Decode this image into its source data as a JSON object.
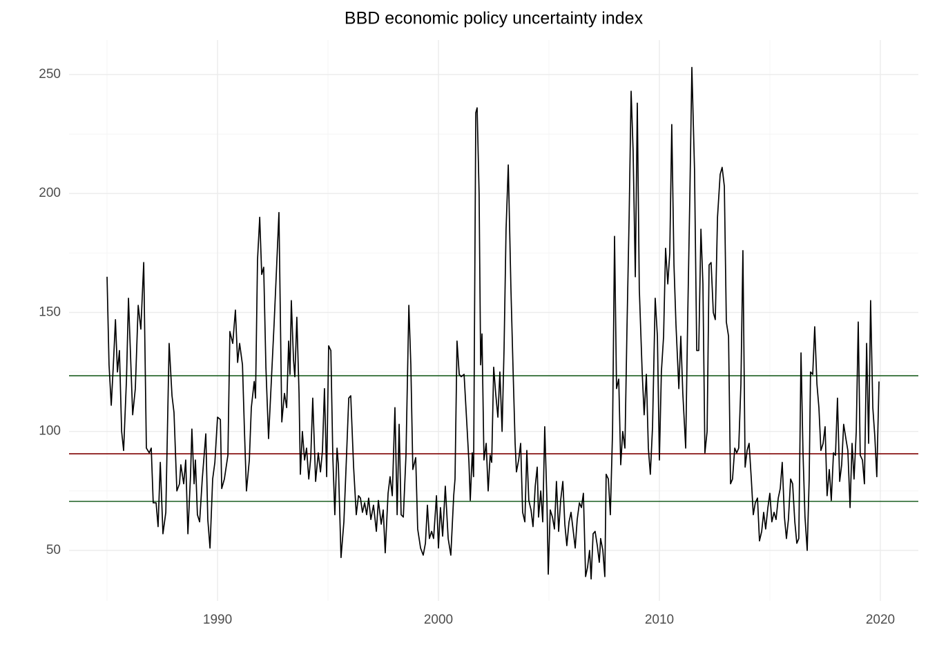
{
  "chart_data": {
    "type": "line",
    "title": "BBD economic policy uncertainty index",
    "x": [
      1985.0,
      1985.09,
      1985.19,
      1985.28,
      1985.38,
      1985.47,
      1985.56,
      1985.66,
      1985.75,
      1985.88,
      1985.97,
      1986.16,
      1986.28,
      1986.41,
      1986.53,
      1986.66,
      1986.78,
      1986.91,
      1987.0,
      1987.09,
      1987.22,
      1987.31,
      1987.41,
      1987.53,
      1987.66,
      1987.81,
      1987.94,
      1988.03,
      1988.16,
      1988.28,
      1988.34,
      1988.47,
      1988.56,
      1988.66,
      1988.78,
      1988.84,
      1988.94,
      1989.0,
      1989.09,
      1989.19,
      1989.31,
      1989.47,
      1989.56,
      1989.66,
      1989.78,
      1989.88,
      1990.0,
      1990.13,
      1990.19,
      1990.31,
      1990.47,
      1990.56,
      1990.69,
      1990.81,
      1990.91,
      1991.0,
      1991.13,
      1991.22,
      1991.31,
      1991.44,
      1991.53,
      1991.66,
      1991.72,
      1991.81,
      1991.91,
      1992.0,
      1992.09,
      1992.19,
      1992.31,
      1992.44,
      1992.56,
      1992.66,
      1992.78,
      1992.91,
      1993.03,
      1993.13,
      1993.22,
      1993.28,
      1993.34,
      1993.44,
      1993.5,
      1993.59,
      1993.69,
      1993.75,
      1993.84,
      1993.94,
      1994.03,
      1994.13,
      1994.22,
      1994.31,
      1994.44,
      1994.56,
      1994.66,
      1994.75,
      1994.84,
      1994.94,
      1995.03,
      1995.13,
      1995.22,
      1995.31,
      1995.41,
      1995.47,
      1995.59,
      1995.72,
      1995.84,
      1995.94,
      1996.03,
      1996.16,
      1996.28,
      1996.38,
      1996.47,
      1996.56,
      1996.66,
      1996.75,
      1996.84,
      1996.94,
      1997.06,
      1997.19,
      1997.28,
      1997.41,
      1997.5,
      1997.59,
      1997.72,
      1997.81,
      1997.91,
      1998.03,
      1998.13,
      1998.22,
      1998.31,
      1998.41,
      1998.53,
      1998.66,
      1998.75,
      1998.84,
      1998.97,
      1999.06,
      1999.19,
      1999.31,
      1999.41,
      1999.5,
      1999.59,
      1999.69,
      1999.78,
      1999.91,
      2000.0,
      2000.09,
      2000.19,
      2000.31,
      2000.44,
      2000.56,
      2000.69,
      2000.75,
      2000.84,
      2000.94,
      2001.03,
      2001.16,
      2001.28,
      2001.38,
      2001.44,
      2001.53,
      2001.59,
      2001.69,
      2001.75,
      2001.84,
      2001.91,
      2001.97,
      2002.06,
      2002.16,
      2002.25,
      2002.34,
      2002.41,
      2002.5,
      2002.59,
      2002.69,
      2002.78,
      2002.88,
      2002.97,
      2003.06,
      2003.16,
      2003.28,
      2003.38,
      2003.47,
      2003.53,
      2003.63,
      2003.72,
      2003.81,
      2003.91,
      2004.0,
      2004.09,
      2004.19,
      2004.28,
      2004.38,
      2004.47,
      2004.53,
      2004.63,
      2004.72,
      2004.81,
      2004.91,
      2004.97,
      2005.06,
      2005.16,
      2005.25,
      2005.34,
      2005.44,
      2005.53,
      2005.63,
      2005.72,
      2005.81,
      2005.91,
      2006.0,
      2006.09,
      2006.19,
      2006.28,
      2006.38,
      2006.47,
      2006.56,
      2006.66,
      2006.75,
      2006.84,
      2006.91,
      2007.0,
      2007.09,
      2007.19,
      2007.28,
      2007.34,
      2007.44,
      2007.53,
      2007.59,
      2007.69,
      2007.78,
      2007.88,
      2007.97,
      2008.06,
      2008.16,
      2008.25,
      2008.34,
      2008.44,
      2008.53,
      2008.63,
      2008.72,
      2008.81,
      2008.91,
      2009.0,
      2009.09,
      2009.22,
      2009.31,
      2009.41,
      2009.5,
      2009.59,
      2009.69,
      2009.81,
      2009.91,
      2010.0,
      2010.09,
      2010.19,
      2010.28,
      2010.38,
      2010.47,
      2010.56,
      2010.66,
      2010.75,
      2010.88,
      2010.97,
      2011.06,
      2011.19,
      2011.28,
      2011.38,
      2011.47,
      2011.59,
      2011.69,
      2011.78,
      2011.88,
      2011.97,
      2012.06,
      2012.16,
      2012.25,
      2012.34,
      2012.44,
      2012.53,
      2012.63,
      2012.75,
      2012.84,
      2012.94,
      2013.03,
      2013.13,
      2013.22,
      2013.31,
      2013.41,
      2013.5,
      2013.59,
      2013.69,
      2013.78,
      2013.88,
      2013.97,
      2014.06,
      2014.16,
      2014.25,
      2014.34,
      2014.44,
      2014.53,
      2014.63,
      2014.72,
      2014.81,
      2014.91,
      2015.0,
      2015.09,
      2015.19,
      2015.28,
      2015.38,
      2015.47,
      2015.56,
      2015.66,
      2015.75,
      2015.84,
      2015.94,
      2016.03,
      2016.13,
      2016.22,
      2016.31,
      2016.41,
      2016.5,
      2016.59,
      2016.69,
      2016.78,
      2016.84,
      2016.94,
      2017.03,
      2017.13,
      2017.22,
      2017.31,
      2017.41,
      2017.5,
      2017.59,
      2017.69,
      2017.78,
      2017.88,
      2017.97,
      2018.06,
      2018.16,
      2018.25,
      2018.34,
      2018.44,
      2018.53,
      2018.63,
      2018.72,
      2018.81,
      2018.91,
      2019.0,
      2019.09,
      2019.19,
      2019.28,
      2019.38,
      2019.47,
      2019.56,
      2019.66,
      2019.75,
      2019.84,
      2019.94
    ],
    "series": [
      {
        "color": "#000000",
        "values": [
          165,
          128,
          111,
          127,
          147,
          125,
          134,
          100,
          92,
          122,
          156,
          107,
          118,
          153,
          143,
          171,
          93,
          91,
          93,
          70,
          70,
          60,
          87,
          57,
          66,
          137,
          115,
          108,
          75,
          78,
          86,
          78,
          88,
          57,
          82,
          101,
          78,
          88,
          65,
          62,
          80,
          99,
          63,
          51,
          80,
          87,
          106,
          105,
          76,
          80,
          90,
          142,
          137,
          151,
          129,
          137,
          128,
          100,
          75,
          88,
          110,
          121,
          114,
          172,
          190,
          166,
          169,
          127,
          97,
          122,
          145,
          166,
          192,
          104,
          116,
          110,
          138,
          124,
          155,
          130,
          123,
          148,
          116,
          82,
          100,
          88,
          93,
          80,
          89,
          114,
          79,
          91,
          83,
          92,
          118,
          81,
          136,
          134,
          89,
          65,
          93,
          86,
          47,
          62,
          90,
          114,
          115,
          85,
          65,
          73,
          72,
          66,
          70,
          65,
          72,
          63,
          69,
          58,
          71,
          61,
          67,
          49,
          74,
          81,
          73,
          110,
          65,
          103,
          65,
          64,
          90,
          153,
          128,
          84,
          89,
          59,
          51,
          48,
          53,
          69,
          55,
          58,
          55,
          73,
          51,
          68,
          56,
          77,
          55,
          48,
          73,
          80,
          138,
          124,
          123,
          124,
          104,
          87,
          71,
          91,
          81,
          234,
          236,
          200,
          128,
          141,
          88,
          95,
          75,
          90,
          87,
          127,
          116,
          106,
          125,
          100,
          135,
          185,
          212,
          160,
          125,
          95,
          83,
          88,
          95,
          66,
          62,
          92,
          71,
          67,
          60,
          77,
          85,
          64,
          75,
          62,
          102,
          71,
          40,
          67,
          64,
          59,
          79,
          58,
          71,
          79,
          61,
          52,
          62,
          66,
          59,
          51,
          63,
          70,
          68,
          74,
          39,
          43,
          50,
          38,
          57,
          58,
          52,
          45,
          55,
          50,
          39,
          82,
          80,
          65,
          100,
          182,
          118,
          122,
          86,
          100,
          93,
          142,
          190,
          243,
          218,
          165,
          238,
          160,
          125,
          107,
          124,
          93,
          82,
          102,
          156,
          140,
          88,
          125,
          140,
          177,
          162,
          175,
          229,
          170,
          145,
          118,
          140,
          116,
          93,
          147,
          200,
          253,
          210,
          134,
          134,
          185,
          162,
          91,
          100,
          170,
          171,
          150,
          147,
          190,
          208,
          211,
          203,
          146,
          140,
          78,
          80,
          93,
          91,
          93,
          120,
          176,
          85,
          92,
          95,
          80,
          65,
          70,
          72,
          54,
          58,
          66,
          59,
          68,
          74,
          62,
          66,
          63,
          72,
          76,
          87,
          64,
          55,
          63,
          80,
          78,
          62,
          53,
          55,
          133,
          91,
          64,
          50,
          80,
          125,
          124,
          144,
          120,
          110,
          92,
          95,
          102,
          73,
          84,
          71,
          91,
          90,
          114,
          79,
          86,
          103,
          97,
          92,
          68,
          95,
          80,
          100,
          146,
          90,
          88,
          78,
          137,
          95,
          155,
          110,
          98,
          81,
          121
        ]
      }
    ],
    "hlines": [
      {
        "value": 123.4,
        "color": "#1b5e20"
      },
      {
        "value": 90.6,
        "color": "#7f0000"
      },
      {
        "value": 70.6,
        "color": "#1b5e20"
      }
    ],
    "xlim": [
      1983.28,
      2021.72
    ],
    "ylim": [
      28.8,
      264.5
    ],
    "xticks": [
      1990,
      2000,
      2010,
      2020
    ],
    "yticks": [
      50,
      100,
      150,
      200,
      250
    ],
    "xminorticks": [
      1985,
      1995,
      2005,
      2015
    ],
    "yminorticks": [
      75,
      125,
      175,
      225
    ],
    "grid": true
  }
}
